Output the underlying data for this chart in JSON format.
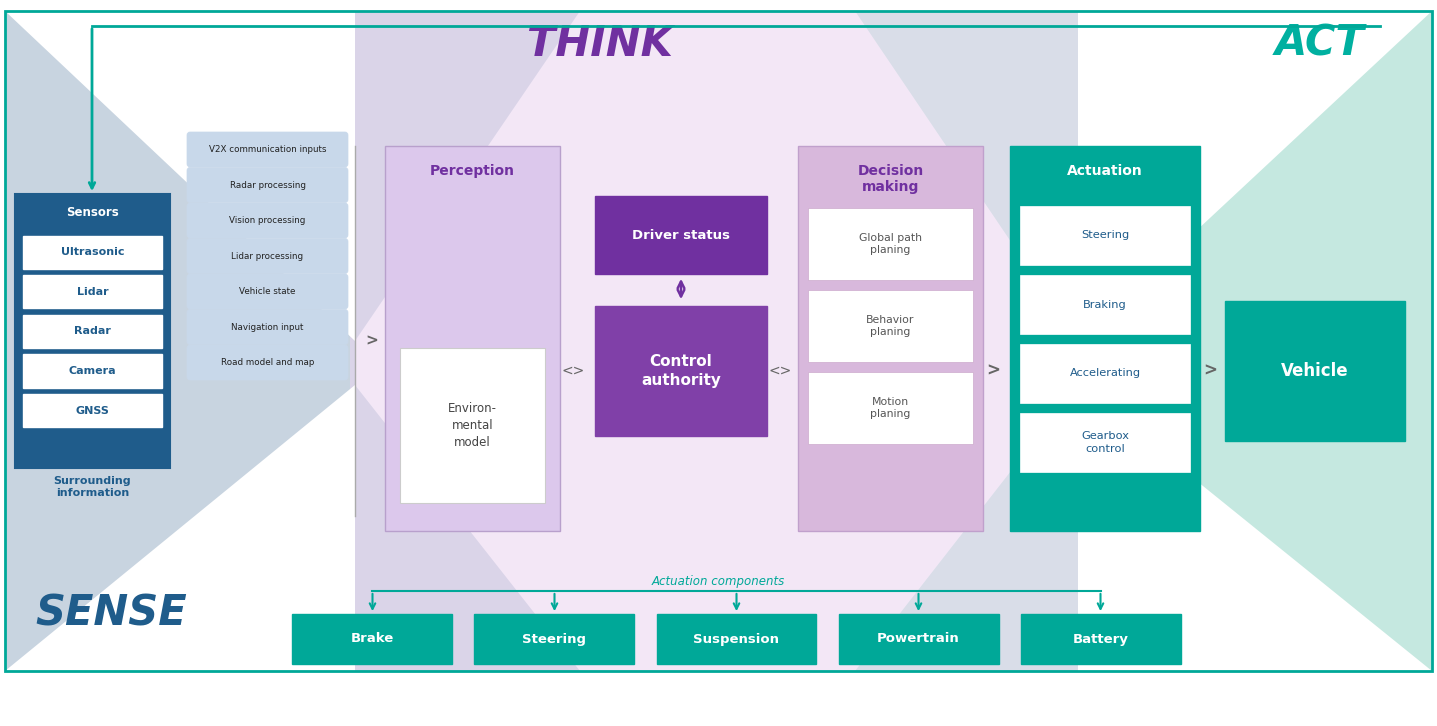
{
  "fig_width": 14.37,
  "fig_height": 7.26,
  "bg_color": "#ffffff",
  "sense_label": "SENSE",
  "sense_color": "#1f5c8b",
  "think_label": "THINK",
  "think_color": "#7030a0",
  "act_label": "ACT",
  "act_color": "#00b0a0",
  "sensors_box_color": "#1f5c8b",
  "sensors_items": [
    "Ultrasonic",
    "Lidar",
    "Radar",
    "Camera",
    "GNSS"
  ],
  "sensors_label": "Sensors",
  "sensors_sub": "Surrounding\ninformation",
  "processing_items": [
    "V2X communication inputs",
    "Radar processing",
    "Vision processing",
    "Lidar processing",
    "Vehicle state",
    "Navigation input",
    "Road model and map"
  ],
  "perception_label": "Perception",
  "env_model_label": "Environ-\nmental\nmodel",
  "driver_status_label": "Driver status",
  "driver_status_bg": "#7030a0",
  "control_authority_label": "Control\nauthority",
  "control_authority_bg": "#8040a8",
  "decision_label": "Decision\nmaking",
  "decision_items": [
    "Global path\nplaning",
    "Behavior\nplaning",
    "Motion\nplaning"
  ],
  "actuation_label": "Actuation",
  "actuation_bg": "#00a898",
  "actuation_items": [
    "Steering",
    "Braking",
    "Accelerating",
    "Gearbox\ncontrol"
  ],
  "vehicle_label": "Vehicle",
  "vehicle_bg": "#00a898",
  "bottom_items": [
    "Brake",
    "Steering",
    "Suspension",
    "Powertrain",
    "Battery"
  ],
  "bottom_color": "#00a898",
  "actuation_components_label": "Actuation components",
  "teal_color": "#00a898",
  "purple_color": "#7030a0",
  "dark_blue": "#1f5c8b",
  "sense_bg_color": "#c8d4e0",
  "think_bg_color": "#ead5f0",
  "act_bg_color": "#c5e8e0",
  "proc_box_color": "#c8d8ea",
  "perc_box_color": "#dcc8ec",
  "dec_box_color": "#d8b8dc"
}
